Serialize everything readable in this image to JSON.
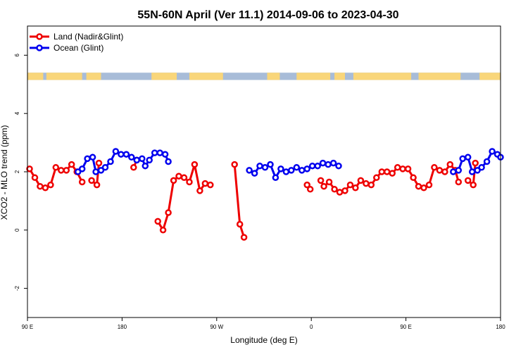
{
  "chart_data": {
    "type": "line",
    "title": "55N-60N April (Ver 11.1)   2014-09-06 to 2023-04-30",
    "xlabel": "Longitude (deg E)",
    "ylabel": "XCO2 - MLO trend (ppm)",
    "xlim": [
      90,
      540
    ],
    "ylim": [
      -3,
      7
    ],
    "x_ticks": [
      {
        "value": 90,
        "label": "90 E"
      },
      {
        "value": 180,
        "label": "180"
      },
      {
        "value": 270,
        "label": "90 W"
      },
      {
        "value": 360,
        "label": "0"
      },
      {
        "value": 450,
        "label": "90 E"
      },
      {
        "value": 540,
        "label": "180"
      }
    ],
    "y_ticks": [
      {
        "value": -2,
        "label": "-2"
      },
      {
        "value": 0,
        "label": "0"
      },
      {
        "value": 2,
        "label": "2"
      },
      {
        "value": 4,
        "label": "4"
      },
      {
        "value": 6,
        "label": "6"
      }
    ],
    "legend_position": "top-left",
    "grid": false,
    "map_strip": {
      "y_range": [
        5.15,
        5.4
      ],
      "ocean_color": "#a8bcd8",
      "land_color": "#f9d67a"
    },
    "series": [
      {
        "name": "Land (Nadir&Glint)",
        "color": "#ee0000",
        "segments": [
          [
            [
              92,
              2.1
            ],
            [
              97,
              1.8
            ],
            [
              102,
              1.5
            ],
            [
              107,
              1.45
            ],
            [
              112,
              1.55
            ],
            [
              117,
              2.15
            ],
            [
              122,
              2.05
            ],
            [
              127,
              2.05
            ],
            [
              132,
              2.25
            ],
            [
              137,
              2.0
            ],
            [
              142,
              1.65
            ]
          ],
          [
            [
              151,
              1.7
            ],
            [
              156,
              1.55
            ],
            [
              158,
              2.3
            ]
          ],
          [
            [
              191,
              2.15
            ],
            [
              194,
              2.4
            ]
          ],
          [
            [
              214,
              0.3
            ],
            [
              219,
              0.0
            ],
            [
              224,
              0.6
            ],
            [
              229,
              1.7
            ],
            [
              234,
              1.85
            ],
            [
              239,
              1.8
            ],
            [
              244,
              1.65
            ],
            [
              249,
              2.25
            ],
            [
              254,
              1.35
            ],
            [
              259,
              1.6
            ],
            [
              264,
              1.55
            ]
          ],
          [
            [
              287,
              2.25
            ],
            [
              292,
              0.2
            ],
            [
              296,
              -0.25
            ]
          ],
          [
            [
              356,
              1.55
            ],
            [
              359,
              1.4
            ]
          ],
          [
            [
              369,
              1.7
            ],
            [
              372,
              1.5
            ],
            [
              377,
              1.65
            ],
            [
              382,
              1.4
            ],
            [
              387,
              1.3
            ],
            [
              392,
              1.35
            ],
            [
              397,
              1.55
            ],
            [
              402,
              1.45
            ],
            [
              407,
              1.7
            ],
            [
              412,
              1.6
            ],
            [
              417,
              1.55
            ],
            [
              422,
              1.8
            ],
            [
              427,
              2.0
            ],
            [
              432,
              2.0
            ],
            [
              437,
              1.95
            ],
            [
              442,
              2.15
            ],
            [
              447,
              2.1
            ],
            [
              452,
              2.1
            ],
            [
              457,
              1.8
            ],
            [
              462,
              1.5
            ],
            [
              467,
              1.45
            ],
            [
              472,
              1.55
            ],
            [
              477,
              2.15
            ],
            [
              482,
              2.05
            ],
            [
              487,
              2.0
            ],
            [
              492,
              2.25
            ],
            [
              497,
              2.05
            ],
            [
              500,
              1.65
            ]
          ],
          [
            [
              509,
              1.7
            ],
            [
              514,
              1.55
            ],
            [
              516,
              2.3
            ]
          ]
        ]
      },
      {
        "name": "Ocean (Glint)",
        "color": "#0000ee",
        "segments": [
          [
            [
              138,
              2.0
            ],
            [
              142,
              2.1
            ],
            [
              147,
              2.45
            ],
            [
              152,
              2.5
            ],
            [
              155,
              2.0
            ],
            [
              160,
              2.05
            ],
            [
              164,
              2.15
            ],
            [
              169,
              2.35
            ],
            [
              174,
              2.7
            ],
            [
              179,
              2.6
            ],
            [
              184,
              2.6
            ],
            [
              189,
              2.5
            ],
            [
              194,
              2.4
            ],
            [
              199,
              2.45
            ],
            [
              202,
              2.2
            ],
            [
              206,
              2.4
            ],
            [
              211,
              2.65
            ],
            [
              216,
              2.65
            ],
            [
              221,
              2.6
            ],
            [
              224,
              2.35
            ]
          ],
          [
            [
              301,
              2.05
            ],
            [
              306,
              1.95
            ],
            [
              311,
              2.2
            ],
            [
              316,
              2.15
            ],
            [
              321,
              2.25
            ],
            [
              326,
              1.8
            ],
            [
              331,
              2.1
            ],
            [
              336,
              2.0
            ],
            [
              341,
              2.05
            ],
            [
              346,
              2.15
            ],
            [
              351,
              2.05
            ],
            [
              356,
              2.1
            ],
            [
              361,
              2.2
            ],
            [
              366,
              2.2
            ],
            [
              371,
              2.3
            ],
            [
              376,
              2.25
            ],
            [
              381,
              2.3
            ],
            [
              386,
              2.2
            ]
          ],
          [
            [
              495,
              2.0
            ],
            [
              500,
              2.05
            ],
            [
              504,
              2.45
            ],
            [
              509,
              2.5
            ],
            [
              513,
              2.0
            ],
            [
              518,
              2.05
            ],
            [
              522,
              2.15
            ],
            [
              527,
              2.35
            ],
            [
              532,
              2.7
            ],
            [
              537,
              2.6
            ],
            [
              540,
              2.5
            ]
          ]
        ]
      }
    ]
  }
}
